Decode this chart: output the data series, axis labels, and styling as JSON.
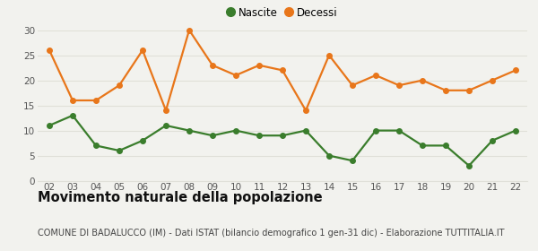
{
  "years": [
    2,
    3,
    4,
    5,
    6,
    7,
    8,
    9,
    10,
    11,
    12,
    13,
    14,
    15,
    16,
    17,
    18,
    19,
    20,
    21,
    22
  ],
  "nascite": [
    11,
    13,
    7,
    6,
    8,
    11,
    10,
    9,
    10,
    9,
    9,
    10,
    5,
    4,
    10,
    10,
    7,
    7,
    3,
    8,
    10
  ],
  "decessi": [
    26,
    16,
    16,
    19,
    26,
    14,
    30,
    23,
    21,
    23,
    22,
    14,
    25,
    19,
    21,
    19,
    20,
    18,
    18,
    20,
    22
  ],
  "nascite_color": "#3a7d2c",
  "decessi_color": "#e8761a",
  "background_color": "#f2f2ee",
  "grid_color": "#e0e0d8",
  "title": "Movimento naturale della popolazione",
  "subtitle": "COMUNE DI BADALUCCO (IM) - Dati ISTAT (bilancio demografico 1 gen-31 dic) - Elaborazione TUTTITALIA.IT",
  "legend_nascite": "Nascite",
  "legend_decessi": "Decessi",
  "ylim": [
    0,
    30
  ],
  "yticks": [
    0,
    5,
    10,
    15,
    20,
    25,
    30
  ],
  "title_fontsize": 10.5,
  "subtitle_fontsize": 7.0,
  "legend_fontsize": 8.5,
  "tick_fontsize": 7.5,
  "marker_size": 4,
  "line_width": 1.6
}
